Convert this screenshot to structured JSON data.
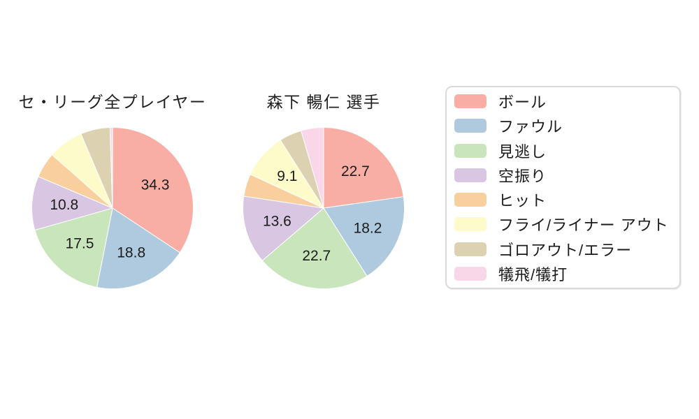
{
  "page": {
    "background": "#ffffff",
    "text_color": "#1c1c1c",
    "slice_border_color": "#ffffff",
    "legend_border_color": "#dadada"
  },
  "legend": {
    "position": "right",
    "items": [
      {
        "label": "ボール",
        "color": "#f9aea5"
      },
      {
        "label": "ファウル",
        "color": "#afcade"
      },
      {
        "label": "見逃し",
        "color": "#c9e5bc"
      },
      {
        "label": "空振り",
        "color": "#d8c6e2"
      },
      {
        "label": "ヒット",
        "color": "#f9d09d"
      },
      {
        "label": "フライ/ライナー アウト",
        "color": "#fdfbca"
      },
      {
        "label": "ゴロアウト/エラー",
        "color": "#dcd2b2"
      },
      {
        "label": "犠飛/犠打",
        "color": "#fad7e8"
      }
    ]
  },
  "chart_data": [
    {
      "type": "pie",
      "title": "セ・リーグ全プレイヤー",
      "unit": "percent",
      "start_angle_deg": 0,
      "direction": "clockwise",
      "label_radius_ratio": 0.6,
      "slices": [
        {
          "category": "ボール",
          "value": 34.3,
          "label": "34.3",
          "color": "#f9aea5"
        },
        {
          "category": "ファウル",
          "value": 18.8,
          "label": "18.8",
          "color": "#afcade"
        },
        {
          "category": "見逃し",
          "value": 17.5,
          "label": "17.5",
          "color": "#c9e5bc"
        },
        {
          "category": "空振り",
          "value": 10.8,
          "label": "10.8",
          "color": "#d8c6e2"
        },
        {
          "category": "ヒット",
          "value": 5.1,
          "label": "",
          "color": "#f9d09d"
        },
        {
          "category": "フライ/ライナー アウト",
          "value": 7.1,
          "label": "",
          "color": "#fdfbca"
        },
        {
          "category": "ゴロアウト/エラー",
          "value": 5.9,
          "label": "",
          "color": "#dcd2b2"
        },
        {
          "category": "犠飛/犠打",
          "value": 0.5,
          "label": "",
          "color": "#fad7e8"
        }
      ]
    },
    {
      "type": "pie",
      "title": "森下 暢仁 選手",
      "unit": "percent",
      "start_angle_deg": 0,
      "direction": "clockwise",
      "label_radius_ratio": 0.6,
      "slices": [
        {
          "category": "ボール",
          "value": 22.7,
          "label": "22.7",
          "color": "#f9aea5"
        },
        {
          "category": "ファウル",
          "value": 18.2,
          "label": "18.2",
          "color": "#afcade"
        },
        {
          "category": "見逃し",
          "value": 22.7,
          "label": "22.7",
          "color": "#c9e5bc"
        },
        {
          "category": "空振り",
          "value": 13.6,
          "label": "13.6",
          "color": "#d8c6e2"
        },
        {
          "category": "ヒット",
          "value": 4.5,
          "label": "",
          "color": "#f9d09d"
        },
        {
          "category": "フライ/ライナー アウト",
          "value": 9.1,
          "label": "9.1",
          "color": "#fdfbca"
        },
        {
          "category": "ゴロアウト/エラー",
          "value": 4.5,
          "label": "",
          "color": "#dcd2b2"
        },
        {
          "category": "犠飛/犠打",
          "value": 4.5,
          "label": "",
          "color": "#fad7e8"
        }
      ]
    }
  ]
}
